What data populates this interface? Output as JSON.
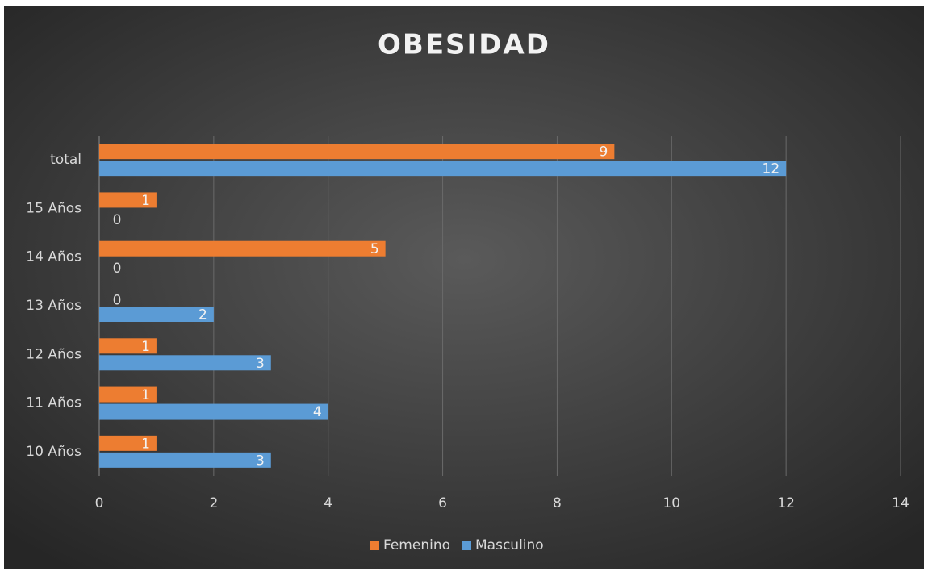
{
  "chart_data": {
    "type": "bar",
    "orientation": "horizontal",
    "title": "OBESIDAD",
    "categories": [
      "10 Años",
      "11 Años",
      "12 Años",
      "13 Años",
      "14 Años",
      "15 Años",
      "total"
    ],
    "series": [
      {
        "name": "Femenino",
        "color": "#ED7D31",
        "values": [
          1,
          1,
          1,
          0,
          5,
          1,
          9
        ]
      },
      {
        "name": "Masculino",
        "color": "#5B9BD5",
        "values": [
          3,
          4,
          3,
          2,
          0,
          0,
          12
        ]
      }
    ],
    "xlim": [
      0,
      14
    ],
    "xticks": [
      0,
      2,
      4,
      6,
      8,
      10,
      12,
      14
    ],
    "grid": true,
    "legend": "bottom"
  }
}
